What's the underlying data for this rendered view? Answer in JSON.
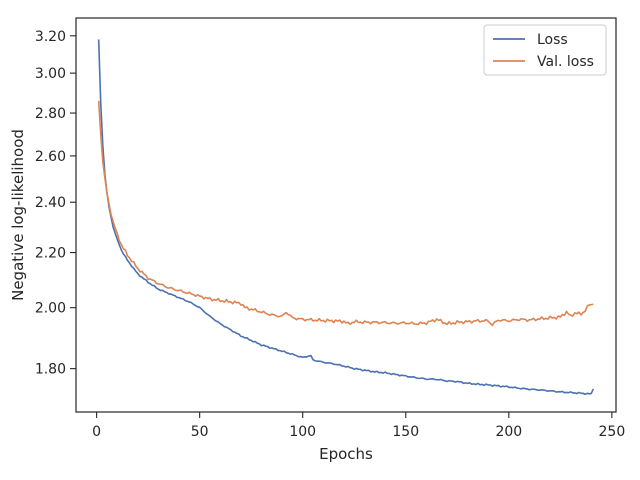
{
  "chart_data": {
    "type": "line",
    "xlabel": "Epochs",
    "ylabel": "Negative log-likelihood",
    "xlim": [
      -10,
      252
    ],
    "ylim": [
      1.67,
      3.3
    ],
    "y_scale": "log",
    "xticks": [
      0,
      50,
      100,
      150,
      200,
      250
    ],
    "xtick_labels": [
      "0",
      "50",
      "100",
      "150",
      "200",
      "250"
    ],
    "yticks": [
      1.8,
      2.0,
      2.2,
      2.4,
      2.6,
      2.8,
      3.0,
      3.2
    ],
    "ytick_labels": [
      "1.80",
      "2.00",
      "2.20",
      "2.40",
      "2.60",
      "2.80",
      "3.00",
      "3.20"
    ],
    "grid": false,
    "legend_position": "top-right",
    "series": [
      {
        "name": "Loss",
        "color": "#4c72b0",
        "x": [
          1,
          2,
          3,
          4,
          5,
          6,
          8,
          10,
          12,
          15,
          18,
          20,
          25,
          30,
          35,
          40,
          45,
          50,
          55,
          60,
          65,
          70,
          75,
          80,
          85,
          90,
          95,
          100,
          103,
          104,
          105,
          110,
          115,
          120,
          125,
          130,
          135,
          140,
          145,
          150,
          155,
          160,
          165,
          170,
          175,
          180,
          185,
          190,
          195,
          200,
          205,
          210,
          215,
          220,
          225,
          230,
          235,
          239,
          240,
          241
        ],
        "y": [
          3.18,
          2.85,
          2.65,
          2.52,
          2.44,
          2.38,
          2.3,
          2.25,
          2.21,
          2.17,
          2.14,
          2.12,
          2.09,
          2.065,
          2.05,
          2.035,
          2.02,
          2.0,
          1.97,
          1.945,
          1.925,
          1.905,
          1.89,
          1.875,
          1.865,
          1.855,
          1.845,
          1.835,
          1.84,
          1.84,
          1.827,
          1.82,
          1.815,
          1.808,
          1.8,
          1.795,
          1.79,
          1.787,
          1.782,
          1.777,
          1.772,
          1.768,
          1.767,
          1.762,
          1.76,
          1.755,
          1.752,
          1.75,
          1.747,
          1.744,
          1.74,
          1.737,
          1.735,
          1.732,
          1.729,
          1.727,
          1.725,
          1.723,
          1.723,
          1.738
        ]
      },
      {
        "name": "Val. loss",
        "color": "#dd8452",
        "x": [
          1,
          2,
          3,
          4,
          5,
          6,
          8,
          10,
          12,
          15,
          18,
          20,
          25,
          30,
          35,
          40,
          45,
          50,
          55,
          60,
          65,
          70,
          72,
          75,
          80,
          85,
          90,
          92,
          95,
          100,
          105,
          110,
          115,
          120,
          122,
          125,
          130,
          135,
          140,
          145,
          150,
          155,
          160,
          165,
          170,
          175,
          180,
          185,
          190,
          192,
          195,
          200,
          205,
          210,
          215,
          220,
          225,
          228,
          230,
          232,
          235,
          237,
          239,
          241
        ],
        "y": [
          2.86,
          2.7,
          2.58,
          2.5,
          2.44,
          2.39,
          2.32,
          2.27,
          2.23,
          2.19,
          2.16,
          2.14,
          2.105,
          2.085,
          2.07,
          2.06,
          2.05,
          2.04,
          2.03,
          2.025,
          2.02,
          2.015,
          2.0,
          1.995,
          1.985,
          1.975,
          1.97,
          1.985,
          1.965,
          1.96,
          1.958,
          1.956,
          1.955,
          1.953,
          1.945,
          1.952,
          1.95,
          1.95,
          1.949,
          1.947,
          1.948,
          1.945,
          1.948,
          1.96,
          1.945,
          1.95,
          1.952,
          1.955,
          1.955,
          1.942,
          1.958,
          1.955,
          1.96,
          1.958,
          1.962,
          1.965,
          1.968,
          1.985,
          1.97,
          1.982,
          1.978,
          1.99,
          2.01,
          2.012
        ]
      }
    ]
  }
}
